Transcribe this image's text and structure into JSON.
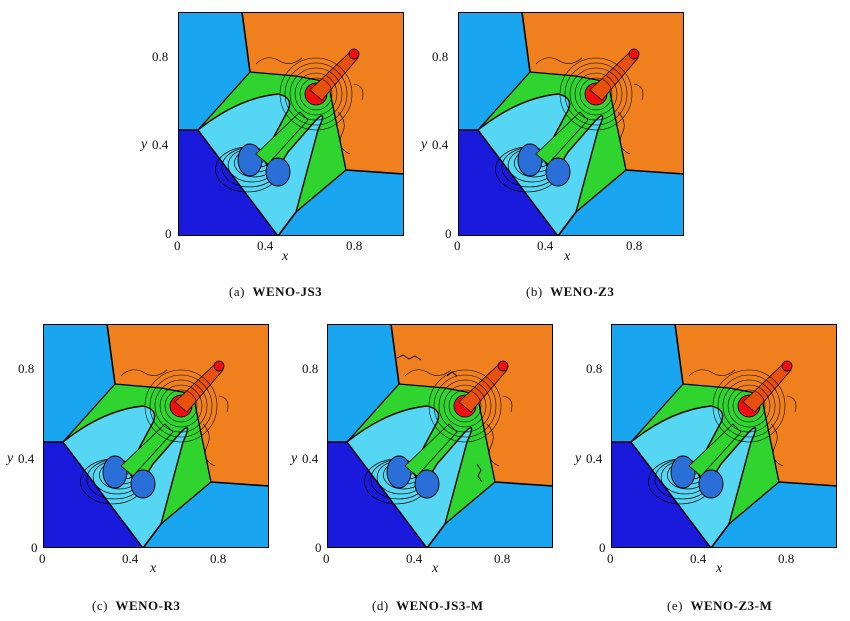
{
  "axes": {
    "xlabel": "x",
    "ylabel": "y",
    "xticks": [
      "0",
      "0.4",
      "0.8"
    ],
    "yticks": [
      "0",
      "0.4",
      "0.8"
    ]
  },
  "colors": {
    "dark_blue": "#1a1adc",
    "light_blue": "#1aa5f0",
    "sky_blue": "#38b8ee",
    "cyan": "#55d6f2",
    "green": "#2fd42f",
    "orange": "#f0801e",
    "red": "#f01010"
  },
  "panels": [
    {
      "id": "a",
      "prefix": "(a)",
      "scheme": "WENO-JS3"
    },
    {
      "id": "b",
      "prefix": "(b)",
      "scheme": "WENO-Z3"
    },
    {
      "id": "c",
      "prefix": "(c)",
      "scheme": "WENO-R3"
    },
    {
      "id": "d",
      "prefix": "(d)",
      "scheme": "WENO-JS3-M"
    },
    {
      "id": "e",
      "prefix": "(e)",
      "scheme": "WENO-Z3-M"
    }
  ]
}
